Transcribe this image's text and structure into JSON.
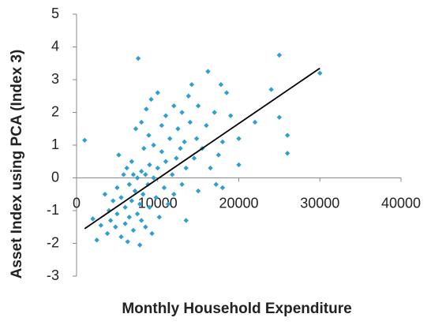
{
  "chart_data": {
    "type": "scatter",
    "xlabel": "Monthly Household Expenditure",
    "ylabel": "Asset Index using PCA (Index 3)",
    "xlim": [
      0,
      40000
    ],
    "xticks": [
      0,
      10000,
      20000,
      30000,
      40000
    ],
    "ylim": [
      -3,
      5
    ],
    "yticks": [
      -3,
      -2,
      -1,
      0,
      1,
      2,
      3,
      4,
      5
    ],
    "color": "#2e9fd0",
    "grid": false,
    "x": [
      1000,
      2000,
      2500,
      3000,
      3500,
      3800,
      4000,
      4200,
      4500,
      4800,
      5000,
      5000,
      5200,
      5500,
      5500,
      5800,
      6000,
      6000,
      6200,
      6300,
      6500,
      6500,
      6800,
      6800,
      7000,
      7000,
      7200,
      7300,
      7500,
      7500,
      7600,
      7800,
      7800,
      8000,
      8000,
      8000,
      8200,
      8300,
      8500,
      8500,
      8600,
      8800,
      8900,
      9000,
      9000,
      9200,
      9300,
      9500,
      9500,
      9800,
      10000,
      10000,
      10200,
      10500,
      10500,
      10800,
      11000,
      11000,
      11300,
      11500,
      11800,
      12000,
      12000,
      12300,
      12500,
      12800,
      13000,
      13000,
      13300,
      13500,
      13500,
      13800,
      14000,
      14200,
      14500,
      14800,
      15000,
      15000,
      15500,
      16000,
      16200,
      16500,
      17000,
      17200,
      17500,
      17800,
      18000,
      18000,
      18500,
      19000,
      20000,
      20000,
      22000,
      24000,
      25000,
      25000,
      26000,
      26000,
      30000
    ],
    "y": [
      1.15,
      -1.25,
      -1.9,
      -1.45,
      -0.5,
      -1.7,
      -1.0,
      -1.3,
      -0.7,
      -1.5,
      -0.3,
      -1.1,
      0.7,
      -1.8,
      -0.6,
      0.1,
      -1.4,
      -0.9,
      0.3,
      -1.95,
      -0.2,
      -1.2,
      0.5,
      -0.7,
      -1.6,
      0.1,
      -0.4,
      1.5,
      -1.1,
      0.0,
      3.65,
      -2.05,
      -0.8,
      0.2,
      -1.3,
      1.7,
      -0.5,
      0.9,
      -1.5,
      0.1,
      2.1,
      -0.2,
      1.3,
      -0.9,
      0.4,
      2.4,
      -1.7,
      0.0,
      1.0,
      -0.6,
      0.3,
      2.6,
      -1.2,
      0.8,
      1.6,
      -0.3,
      0.5,
      1.9,
      -0.8,
      1.2,
      0.1,
      2.2,
      -0.5,
      0.6,
      1.5,
      0.9,
      -0.2,
      2.0,
      1.1,
      -1.3,
      0.3,
      2.5,
      1.7,
      2.85,
      0.6,
      1.2,
      -0.4,
      2.2,
      0.9,
      1.6,
      3.25,
      0.3,
      2.0,
      -0.2,
      0.7,
      2.85,
      1.1,
      -0.3,
      2.6,
      1.9,
      0.4,
      1.2,
      1.7,
      2.7,
      3.75,
      1.85,
      1.3,
      0.75,
      3.2
    ],
    "trendline": {
      "x": [
        1000,
        30000
      ],
      "y": [
        -1.55,
        3.35
      ],
      "color": "#000000"
    }
  }
}
